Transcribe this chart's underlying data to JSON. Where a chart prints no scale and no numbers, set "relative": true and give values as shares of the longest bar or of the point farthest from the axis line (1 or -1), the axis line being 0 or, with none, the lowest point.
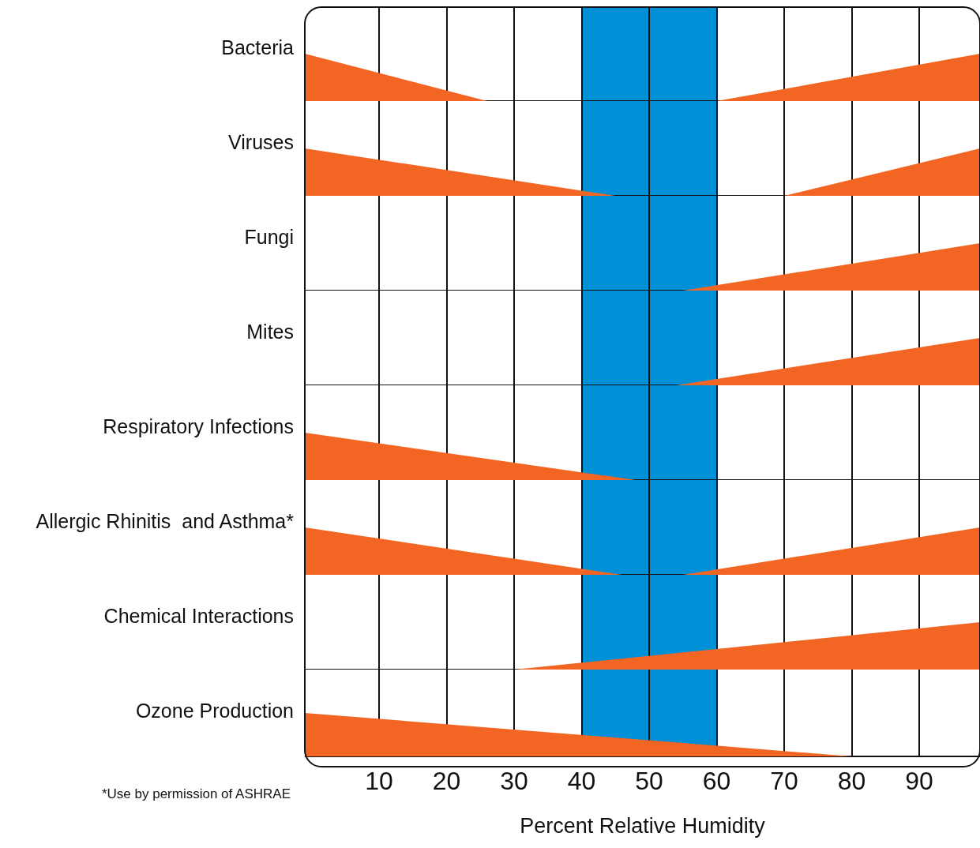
{
  "chart_data": [
    {
      "type": "area",
      "ylabel": "Bacteria",
      "x": [
        -1,
        26,
        60,
        99
      ],
      "values": [
        1,
        0,
        0,
        1
      ],
      "color": "#f26522",
      "relative": true,
      "xlim": [
        -1,
        99
      ],
      "xticks": [
        10,
        20,
        30,
        40,
        50,
        60,
        70,
        80,
        90
      ],
      "grid": "x",
      "tick_labels": false,
      "bands": [
        {
          "axis": "x",
          "from": 40,
          "to": 60,
          "color": "#0090d8"
        }
      ]
    },
    {
      "type": "area",
      "ylabel": "Viruses",
      "x": [
        -1,
        45,
        70,
        99
      ],
      "values": [
        1,
        0,
        0,
        1
      ],
      "color": "#f26522",
      "relative": true,
      "xlim": [
        -1,
        99
      ],
      "xticks": [
        10,
        20,
        30,
        40,
        50,
        60,
        70,
        80,
        90
      ],
      "grid": "x",
      "tick_labels": false,
      "bands": [
        {
          "axis": "x",
          "from": 40,
          "to": 60,
          "color": "#0090d8"
        }
      ]
    },
    {
      "type": "area",
      "ylabel": "Fungi",
      "x": [
        55,
        99
      ],
      "values": [
        0,
        1
      ],
      "color": "#f26522",
      "relative": true,
      "xlim": [
        -1,
        99
      ],
      "xticks": [
        10,
        20,
        30,
        40,
        50,
        60,
        70,
        80,
        90
      ],
      "grid": "x",
      "tick_labels": false,
      "bands": [
        {
          "axis": "x",
          "from": 40,
          "to": 60,
          "color": "#0090d8"
        }
      ]
    },
    {
      "type": "area",
      "ylabel": "Mites",
      "x": [
        54,
        99
      ],
      "values": [
        0,
        1
      ],
      "color": "#f26522",
      "relative": true,
      "xlim": [
        -1,
        99
      ],
      "xticks": [
        10,
        20,
        30,
        40,
        50,
        60,
        70,
        80,
        90
      ],
      "grid": "x",
      "tick_labels": false,
      "bands": [
        {
          "axis": "x",
          "from": 40,
          "to": 60,
          "color": "#0090d8"
        }
      ]
    },
    {
      "type": "area",
      "ylabel": "Respiratory Infections",
      "x": [
        -1,
        48
      ],
      "values": [
        1,
        0
      ],
      "color": "#f26522",
      "relative": true,
      "xlim": [
        -1,
        99
      ],
      "xticks": [
        10,
        20,
        30,
        40,
        50,
        60,
        70,
        80,
        90
      ],
      "grid": "x",
      "tick_labels": false,
      "bands": [
        {
          "axis": "x",
          "from": 40,
          "to": 60,
          "color": "#0090d8"
        }
      ]
    },
    {
      "type": "area",
      "ylabel": "Allergic Rhinitis  and Asthma*",
      "x": [
        -1,
        46,
        55,
        99
      ],
      "values": [
        1,
        0,
        0,
        1
      ],
      "color": "#f26522",
      "relative": true,
      "xlim": [
        -1,
        99
      ],
      "xticks": [
        10,
        20,
        30,
        40,
        50,
        60,
        70,
        80,
        90
      ],
      "grid": "x",
      "tick_labels": false,
      "bands": [
        {
          "axis": "x",
          "from": 40,
          "to": 60,
          "color": "#0090d8"
        }
      ]
    },
    {
      "type": "area",
      "ylabel": "Chemical Interactions",
      "x": [
        30,
        99
      ],
      "values": [
        0,
        1
      ],
      "color": "#f26522",
      "relative": true,
      "xlim": [
        -1,
        99
      ],
      "xticks": [
        10,
        20,
        30,
        40,
        50,
        60,
        70,
        80,
        90
      ],
      "grid": "x",
      "tick_labels": false,
      "bands": [
        {
          "axis": "x",
          "from": 40,
          "to": 60,
          "color": "#0090d8"
        }
      ]
    },
    {
      "type": "area",
      "ylabel": "Ozone Production",
      "x": [
        -1,
        80
      ],
      "values": [
        1,
        0
      ],
      "color": "#f26522",
      "relative": true,
      "xlim": [
        -1,
        99
      ],
      "xticks": [
        10,
        20,
        30,
        40,
        50,
        60,
        70,
        80,
        90
      ],
      "grid": "x",
      "tick_labels": "x",
      "xlabel": "Percent Relative Humidity",
      "annotations": [
        "*Use by permission of ASHRAE"
      ],
      "bands": [
        {
          "axis": "x",
          "from": 40,
          "to": 60,
          "color": "#0090d8"
        }
      ]
    }
  ]
}
